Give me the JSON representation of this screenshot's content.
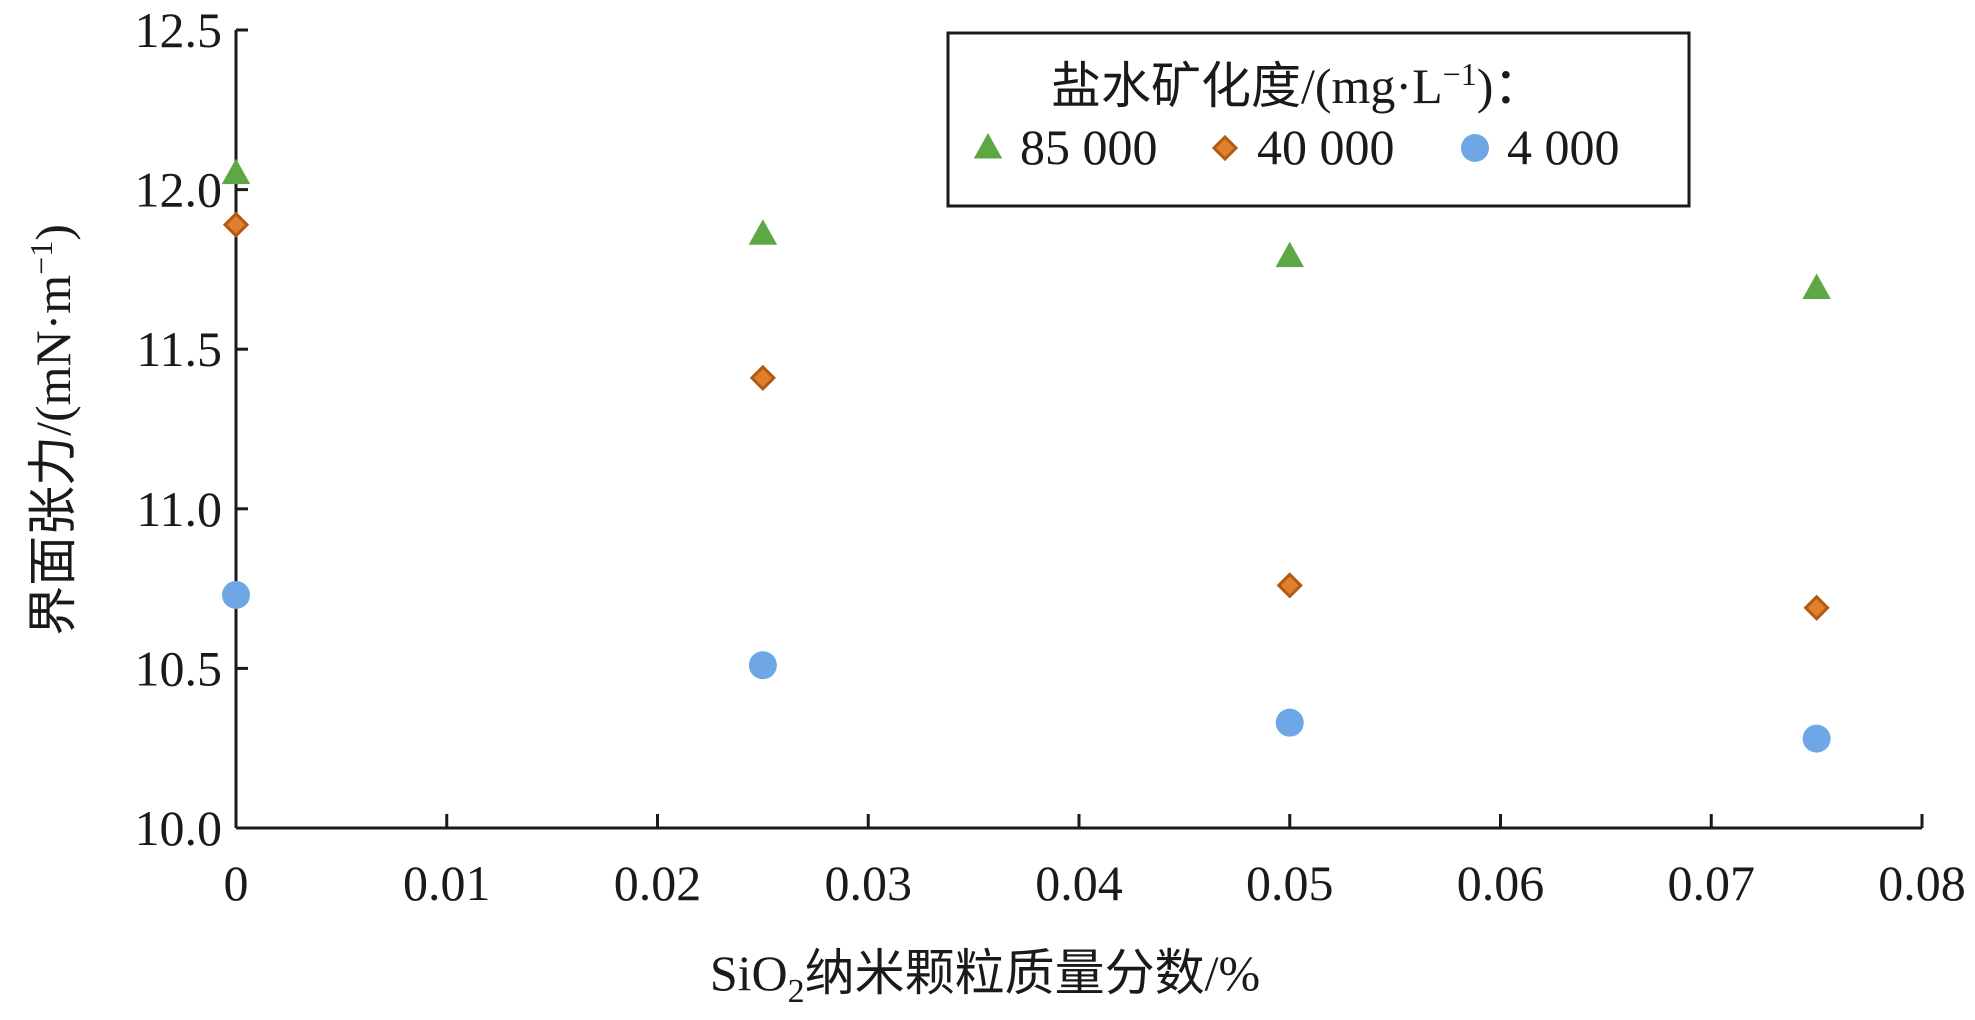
{
  "chart_data": {
    "type": "scatter",
    "title": "",
    "xlabel_parts": {
      "pre": "SiO",
      "sub": "2",
      "post": "纳米颗粒质量分数/%"
    },
    "ylabel_parts": {
      "pre": "界面张力/(mN·m",
      "sup": "−1",
      "post": ")"
    },
    "xlim": [
      0,
      0.08
    ],
    "ylim": [
      10.0,
      12.5
    ],
    "x_ticks": [
      0,
      0.01,
      0.02,
      0.03,
      0.04,
      0.05,
      0.06,
      0.07,
      0.08
    ],
    "x_tick_labels": [
      "0",
      "0.01",
      "0.02",
      "0.03",
      "0.04",
      "0.05",
      "0.06",
      "0.07",
      "0.08"
    ],
    "y_ticks": [
      10.0,
      10.5,
      11.0,
      11.5,
      12.0,
      12.5
    ],
    "y_tick_labels": [
      "10.0",
      "10.5",
      "11.0",
      "11.5",
      "12.0",
      "12.5"
    ],
    "grid": false,
    "legend": {
      "position": "top-right",
      "title_parts": {
        "pre": "盐水矿化度/(mg·L",
        "sup": "−1",
        "post": ")："
      }
    },
    "series": [
      {
        "name": "85 000",
        "marker": "triangle",
        "color": "#5da845",
        "x": [
          0,
          0.025,
          0.05,
          0.075
        ],
        "y": [
          12.05,
          11.86,
          11.79,
          11.69
        ]
      },
      {
        "name": "40 000",
        "marker": "diamond",
        "color": "#e07f2c",
        "stroke": "#b05a14",
        "x": [
          0,
          0.025,
          0.05,
          0.075
        ],
        "y": [
          11.89,
          11.41,
          10.76,
          10.69
        ]
      },
      {
        "name": "4 000",
        "marker": "circle",
        "color": "#6ea6e6",
        "x": [
          0,
          0.025,
          0.05,
          0.075
        ],
        "y": [
          10.73,
          10.51,
          10.33,
          10.28
        ]
      }
    ]
  }
}
